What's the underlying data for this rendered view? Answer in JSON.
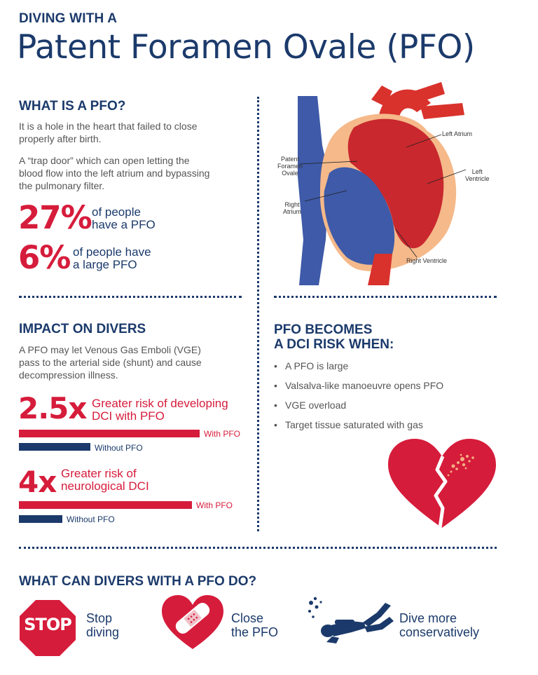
{
  "header": {
    "kicker": "DIVING WITH A",
    "title": "Patent Foramen Ovale (PFO)"
  },
  "what_is": {
    "heading": "WHAT IS A PFO?",
    "para1_line1": "It is a hole in the heart that failed to close",
    "para1_line2": "properly after birth.",
    "para2_line1": "A “trap door” which can open letting the",
    "para2_line2": "blood flow into the left atrium and bypassing",
    "para2_line3": "the pulmonary filter.",
    "stat1_value": "27%",
    "stat1_line1": "of people",
    "stat1_line2": "have a PFO",
    "stat2_value": "6%",
    "stat2_line1": "of people have",
    "stat2_line2": "a large PFO"
  },
  "heart_diagram": {
    "left_atrium": "Left Atrium",
    "patent_foramen_ovale_1": "Patent",
    "patent_foramen_ovale_2": "Foramen",
    "patent_foramen_ovale_3": "Ovale",
    "left_ventricle_1": "Left",
    "left_ventricle_2": "Ventricle",
    "right_atrium_1": "Right",
    "right_atrium_2": "Atrium",
    "right_ventricle": "Right Ventricle"
  },
  "impact": {
    "heading": "IMPACT ON DIVERS",
    "para_line1": "A PFO may let Venous Gas Emboli (VGE)",
    "para_line2": "pass to the arterial side (shunt) and cause",
    "para_line3": "decompression illness.",
    "risk1_value": "2.5x",
    "risk1_line1": "Greater risk of developing",
    "risk1_line2": "DCI with PFO",
    "risk2_value": "4x",
    "risk2_line1": "Greater risk of",
    "risk2_line2": "neurological DCI",
    "with_label": "With PFO",
    "without_label": "Without PFO"
  },
  "dci_risk": {
    "heading_line1": "PFO BECOMES",
    "heading_line2": "A DCI RISK WHEN:",
    "items": [
      "A PFO is large",
      "Valsalva-like manoeuvre opens PFO",
      "VGE overload",
      "Target tissue saturated with gas"
    ]
  },
  "actions": {
    "heading": "WHAT CAN DIVERS WITH A PFO DO?",
    "stop_sign": "STOP",
    "a1_line1": "Stop",
    "a1_line2": "diving",
    "a2_line1": "Close",
    "a2_line2": "the PFO",
    "a3_line1": "Dive more",
    "a3_line2": "conservatively"
  },
  "chart_data": [
    {
      "type": "bar",
      "categories": [
        "With PFO",
        "Without PFO"
      ],
      "values": [
        2.5,
        1
      ],
      "title": "Greater risk of developing DCI with PFO"
    },
    {
      "type": "bar",
      "categories": [
        "With PFO",
        "Without PFO"
      ],
      "values": [
        4,
        1
      ],
      "title": "Greater risk of neurological DCI"
    }
  ],
  "colors": {
    "navy": "#1b3a6b",
    "red": "#d61c3b",
    "body_text": "#555555",
    "heart_peach": "#f5b98a"
  }
}
